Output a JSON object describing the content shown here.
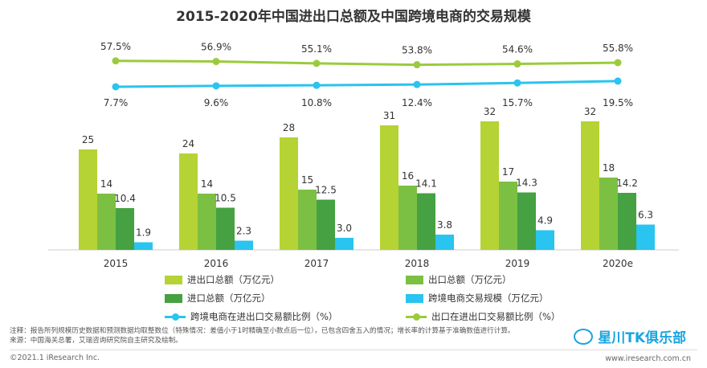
{
  "title": "2015-2020年中国进出口总额及中国跨境电商的交易规模",
  "chart_data": {
    "type": "bar",
    "categories": [
      "2015",
      "2016",
      "2017",
      "2018",
      "2019",
      "2020e"
    ],
    "series": [
      {
        "name": "进出口总额（万亿元）",
        "values": [
          25,
          24,
          28,
          31,
          32,
          32
        ],
        "labels": [
          "25",
          "24",
          "28",
          "31",
          "32",
          "32"
        ],
        "color": "#b5d334"
      },
      {
        "name": "出口总额（万亿元）",
        "values": [
          14,
          14,
          15,
          16,
          17,
          18
        ],
        "labels": [
          "14",
          "14",
          "15",
          "16",
          "17",
          "18"
        ],
        "color": "#7cc043"
      },
      {
        "name": "进口总额（万亿元）",
        "values": [
          10.4,
          10.5,
          12.5,
          14.1,
          14.3,
          14.2
        ],
        "labels": [
          "10.4",
          "10.5",
          "12.5",
          "14.1",
          "14.3",
          "14.2"
        ],
        "color": "#45a142"
      },
      {
        "name": "跨境电商交易规模（万亿元）",
        "values": [
          1.9,
          2.3,
          3.0,
          3.8,
          4.9,
          6.3
        ],
        "labels": [
          "1.9",
          "2.3",
          "3.0",
          "3.8",
          "4.9",
          "6.3"
        ],
        "color": "#29c4ef"
      }
    ],
    "line_series": [
      {
        "name": "跨境电商在进出口交易额比例（%）",
        "values": [
          7.7,
          9.6,
          10.8,
          12.4,
          15.7,
          19.5
        ],
        "labels": [
          "7.7%",
          "9.6%",
          "10.8%",
          "12.4%",
          "15.7%",
          "19.5%"
        ],
        "color": "#29c4ef"
      },
      {
        "name": "出口在进出口交易额比例（%）",
        "values": [
          57.5,
          56.9,
          55.1,
          53.8,
          54.6,
          55.8
        ],
        "labels": [
          "57.5%",
          "56.9%",
          "55.1%",
          "53.8%",
          "54.6%",
          "55.8%"
        ],
        "color": "#9bcb3c"
      }
    ],
    "legend_position": "bottom",
    "grid": false
  },
  "notes": [
    "注释：报告所列规模历史数据和预测数据均取整数位（特殊情况：差值小于1时精确至小数点后一位），已包含四舍五入的情况；增长率的计算基于准确数值进行计算。",
    "来源：中国海关总署，艾瑞咨询研究院自主研究及绘制。"
  ],
  "footer": {
    "copyright": "©2021.1 iResearch Inc.",
    "website": "www.iresearch.com.cn"
  },
  "watermark": "星川TK俱乐部"
}
